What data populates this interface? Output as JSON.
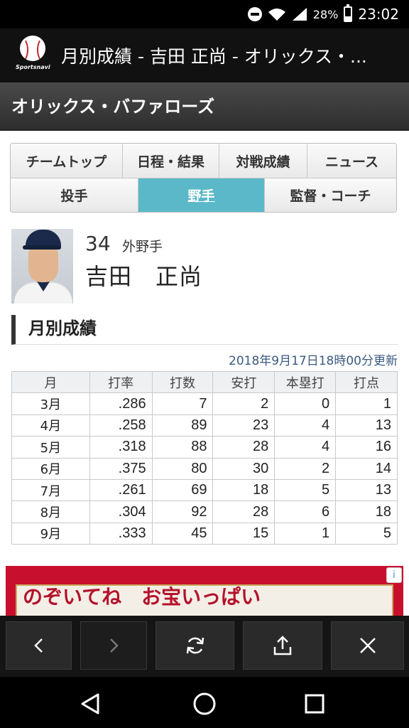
{
  "status_bar": {
    "battery": "28%",
    "time": "23:02"
  },
  "app_bar": {
    "logo_text": "Sportsnavi",
    "title": "月別成績 - 吉田 正尚 - オリックス・..."
  },
  "team": {
    "name": "オリックス・バファローズ"
  },
  "tabs": {
    "row1": [
      "チームトップ",
      "日程・結果",
      "対戦成績",
      "ニュース"
    ],
    "row2": [
      "投手",
      "野手",
      "監督・コーチ"
    ],
    "active": "野手"
  },
  "player": {
    "number": "34",
    "position": "外野手",
    "name": "吉田　正尚"
  },
  "section": {
    "title": "月別成績",
    "updated": "2018年9月17日18時00分更新"
  },
  "table": {
    "headers": [
      "月",
      "打率",
      "打数",
      "安打",
      "本塁打",
      "打点"
    ],
    "rows": [
      [
        "3月",
        ".286",
        "7",
        "2",
        "0",
        "1"
      ],
      [
        "4月",
        ".258",
        "89",
        "23",
        "4",
        "13"
      ],
      [
        "5月",
        ".318",
        "88",
        "28",
        "4",
        "16"
      ],
      [
        "6月",
        ".375",
        "80",
        "30",
        "2",
        "14"
      ],
      [
        "7月",
        ".261",
        "69",
        "18",
        "5",
        "13"
      ],
      [
        "8月",
        ".304",
        "92",
        "28",
        "6",
        "18"
      ],
      [
        "9月",
        ".333",
        "45",
        "15",
        "1",
        "5"
      ]
    ]
  },
  "ad": {
    "text": "のぞいてね　お宝いっぱい",
    "info_icon": "info-icon"
  },
  "toolbar": {
    "icons": [
      "back-icon",
      "forward-icon",
      "refresh-icon",
      "share-icon",
      "close-icon"
    ]
  },
  "navbar": {
    "icons": [
      "nav-back-icon",
      "nav-home-icon",
      "nav-recents-icon"
    ]
  }
}
